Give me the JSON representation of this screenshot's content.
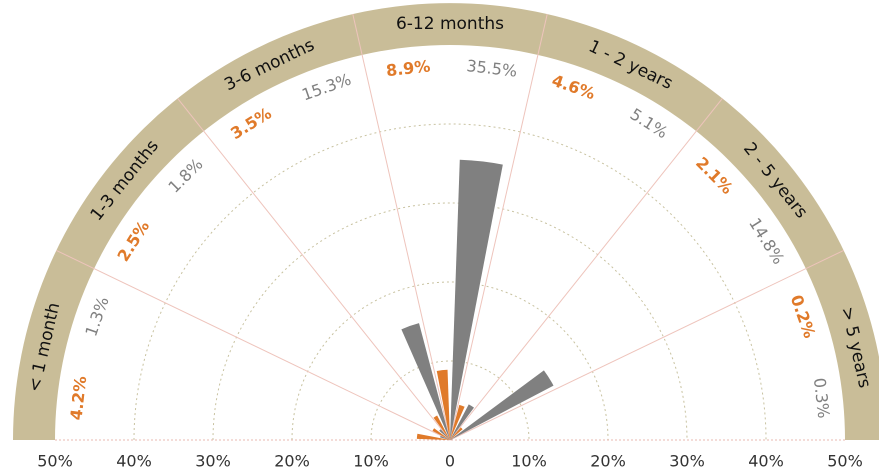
{
  "chart_data": {
    "type": "polar-bar",
    "categories": [
      "< 1 month",
      "1-3 months",
      "3-6 months",
      "6-12 months",
      "1 - 2 years",
      "2 - 5 years",
      "> 5 years"
    ],
    "series": [
      {
        "color": "#e07a2a",
        "values": [
          4.2,
          2.5,
          3.5,
          8.9,
          4.6,
          2.1,
          0.2
        ],
        "value_labels": [
          "4.2%",
          "2.5%",
          "3.5%",
          "8.9%",
          "4.6%",
          "2.1%",
          "0.2%"
        ]
      },
      {
        "color": "#808080",
        "values": [
          1.3,
          1.8,
          15.3,
          35.5,
          5.1,
          14.8,
          0.3
        ],
        "value_labels": [
          "1.3%",
          "1.8%",
          "15.3%",
          "35.5%",
          "5.1%",
          "14.8%",
          "0.3%"
        ]
      }
    ],
    "rlim": [
      0,
      50
    ],
    "rticks": [
      {
        "value": 0,
        "label": "0"
      },
      {
        "value": 10,
        "label": "10%"
      },
      {
        "value": 20,
        "label": "20%"
      },
      {
        "value": 30,
        "label": "30%"
      },
      {
        "value": 40,
        "label": "40%"
      },
      {
        "value": 50,
        "label": "50%"
      }
    ],
    "band_color": "#c9bd98"
  }
}
